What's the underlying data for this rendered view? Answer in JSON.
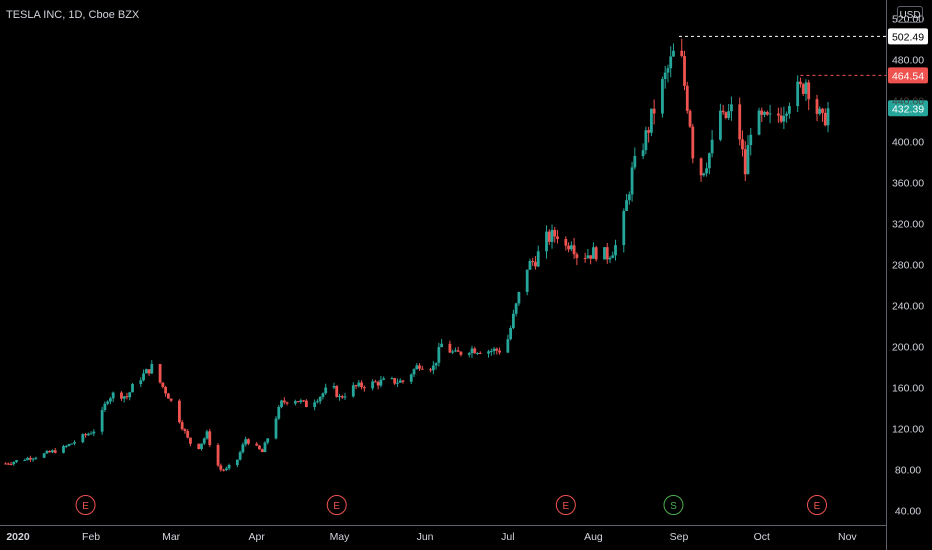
{
  "header": {
    "title": "TESLA INC, 1D, Cboe BZX",
    "currency": "USD"
  },
  "colors": {
    "up": "#26a69a",
    "down": "#ef5350",
    "background": "#000000",
    "axis_text": "#d1d4dc",
    "earnings": "#ef5350",
    "split": "#4caf50",
    "axis_line": "#5d606b"
  },
  "chart_data": {
    "type": "candlestick",
    "title": "TESLA INC, 1D, Cboe BZX",
    "currency": "USD",
    "y_ticks": [
      "520.00",
      "480.00",
      "440.00",
      "400.00",
      "360.00",
      "320.00",
      "280.00",
      "240.00",
      "200.00",
      "160.00",
      "120.00",
      "80.00",
      "40.00"
    ],
    "ylim": [
      26,
      538
    ],
    "x_ticks": [
      {
        "label": "2020",
        "day": 0
      },
      {
        "label": "Feb",
        "day": 31
      },
      {
        "label": "Mar",
        "day": 60
      },
      {
        "label": "Apr",
        "day": 91
      },
      {
        "label": "May",
        "day": 121
      },
      {
        "label": "Jun",
        "day": 152
      },
      {
        "label": "Jul",
        "day": 182
      },
      {
        "label": "Aug",
        "day": 213
      },
      {
        "label": "Sep",
        "day": 244
      },
      {
        "label": "Oct",
        "day": 274
      },
      {
        "label": "Nov",
        "day": 305
      }
    ],
    "xlim": [
      -2,
      319
    ],
    "price_labels": [
      {
        "value": 502.49,
        "text": "502.49",
        "style": "high"
      },
      {
        "value": 464.54,
        "text": "464.54",
        "style": "down"
      },
      {
        "value": 432.39,
        "text": "432.39",
        "style": "last"
      }
    ],
    "events": [
      {
        "letter": "E",
        "day": 29,
        "kind": "earnings"
      },
      {
        "letter": "E",
        "day": 120,
        "kind": "earnings"
      },
      {
        "letter": "E",
        "day": 203,
        "kind": "earnings"
      },
      {
        "letter": "S",
        "day": 242,
        "kind": "split"
      },
      {
        "letter": "E",
        "day": 294,
        "kind": "earnings"
      }
    ],
    "anchors": [
      [
        0,
        86
      ],
      [
        14,
        95
      ],
      [
        21,
        101
      ],
      [
        28,
        112
      ],
      [
        33,
        120
      ],
      [
        37,
        150
      ],
      [
        40,
        155
      ],
      [
        44,
        151
      ],
      [
        47,
        165
      ],
      [
        53,
        180
      ],
      [
        56,
        165
      ],
      [
        59,
        152
      ],
      [
        62,
        135
      ],
      [
        66,
        110
      ],
      [
        69,
        98
      ],
      [
        73,
        115
      ],
      [
        76,
        88
      ],
      [
        78,
        80
      ],
      [
        80,
        80
      ],
      [
        84,
        90
      ],
      [
        87,
        110
      ],
      [
        90,
        103
      ],
      [
        93,
        97
      ],
      [
        96,
        118
      ],
      [
        100,
        145
      ],
      [
        104,
        150
      ],
      [
        109,
        143
      ],
      [
        114,
        152
      ],
      [
        118,
        162
      ],
      [
        121,
        150
      ],
      [
        126,
        160
      ],
      [
        131,
        163
      ],
      [
        137,
        166
      ],
      [
        144,
        166
      ],
      [
        150,
        183
      ],
      [
        155,
        180
      ],
      [
        158,
        202
      ],
      [
        163,
        192
      ],
      [
        168,
        198
      ],
      [
        176,
        196
      ],
      [
        181,
        197
      ],
      [
        186,
        250
      ],
      [
        189,
        278
      ],
      [
        192,
        285
      ],
      [
        196,
        305
      ],
      [
        200,
        310
      ],
      [
        203,
        297
      ],
      [
        205,
        305
      ],
      [
        207,
        290
      ],
      [
        210,
        290
      ],
      [
        214,
        292
      ],
      [
        218,
        289
      ],
      [
        221,
        298
      ],
      [
        224,
        325
      ],
      [
        227,
        370
      ],
      [
        232,
        405
      ],
      [
        236,
        440
      ],
      [
        240,
        470
      ],
      [
        244,
        498
      ],
      [
        246,
        455
      ],
      [
        248,
        420
      ],
      [
        250,
        360
      ],
      [
        253,
        375
      ],
      [
        256,
        395
      ],
      [
        258,
        440
      ],
      [
        260,
        420
      ],
      [
        263,
        430
      ],
      [
        266,
        405
      ],
      [
        268,
        370
      ],
      [
        270,
        415
      ],
      [
        273,
        420
      ],
      [
        277,
        420
      ],
      [
        281,
        428
      ],
      [
        285,
        448
      ],
      [
        288,
        450
      ],
      [
        290,
        460
      ],
      [
        292,
        445
      ],
      [
        294,
        430
      ],
      [
        296,
        418
      ],
      [
        298,
        432
      ]
    ]
  }
}
